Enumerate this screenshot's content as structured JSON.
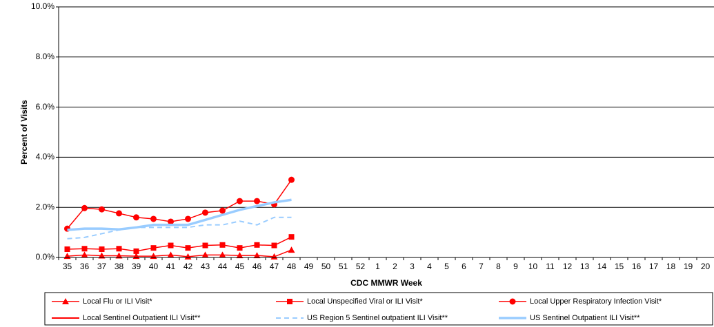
{
  "chart_data": {
    "type": "line",
    "y_label": "Percent of Visits",
    "x_label": "CDC MMWR Week",
    "categories": [
      "35",
      "36",
      "37",
      "38",
      "39",
      "40",
      "41",
      "42",
      "43",
      "44",
      "45",
      "46",
      "47",
      "48",
      "49",
      "50",
      "51",
      "52",
      "1",
      "2",
      "3",
      "4",
      "5",
      "6",
      "7",
      "8",
      "9",
      "10",
      "11",
      "12",
      "13",
      "14",
      "15",
      "16",
      "17",
      "18",
      "19",
      "20"
    ],
    "ylim": [
      0,
      10
    ],
    "yticks": [
      {
        "value": 0,
        "label": "0.0%"
      },
      {
        "value": 2,
        "label": "2.0%"
      },
      {
        "value": 4,
        "label": "4.0%"
      },
      {
        "value": 6,
        "label": "6.0%"
      },
      {
        "value": 8,
        "label": "8.0%"
      },
      {
        "value": 10,
        "label": "10.0%"
      }
    ],
    "grid": true,
    "legend": "bottom",
    "series": [
      {
        "name": "Local Flu or ILI Visit*",
        "color": "#ff0000",
        "marker": "triangle",
        "dash": false,
        "width": 1.5,
        "values": [
          0.05,
          0.1,
          0.07,
          0.07,
          0.05,
          0.05,
          0.1,
          0.03,
          0.1,
          0.1,
          0.08,
          0.08,
          0.03,
          0.3,
          null,
          null,
          null,
          null,
          null,
          null,
          null,
          null,
          null,
          null,
          null,
          null,
          null,
          null,
          null,
          null,
          null,
          null,
          null,
          null,
          null,
          null,
          null,
          null
        ]
      },
      {
        "name": "Local Unspecified Viral or ILI Visit*",
        "color": "#ff0000",
        "marker": "square",
        "dash": false,
        "width": 1.5,
        "values": [
          0.33,
          0.35,
          0.33,
          0.35,
          0.25,
          0.38,
          0.48,
          0.38,
          0.48,
          0.5,
          0.38,
          0.5,
          0.48,
          0.82,
          null,
          null,
          null,
          null,
          null,
          null,
          null,
          null,
          null,
          null,
          null,
          null,
          null,
          null,
          null,
          null,
          null,
          null,
          null,
          null,
          null,
          null,
          null,
          null
        ]
      },
      {
        "name": "Local Upper Respiratory Infection Visit*",
        "color": "#ff0000",
        "marker": "circle",
        "dash": false,
        "width": 1.5,
        "values": [
          1.15,
          1.97,
          1.92,
          1.76,
          1.6,
          1.54,
          1.43,
          1.54,
          1.79,
          1.87,
          2.25,
          2.25,
          2.12,
          3.1,
          null,
          null,
          null,
          null,
          null,
          null,
          null,
          null,
          null,
          null,
          null,
          null,
          null,
          null,
          null,
          null,
          null,
          null,
          null,
          null,
          null,
          null,
          null,
          null
        ]
      },
      {
        "name": "Local Sentinel Outpatient ILI Visit**",
        "color": "#ff0000",
        "marker": "none",
        "dash": false,
        "width": 2,
        "values": [
          null,
          null,
          null,
          null,
          null,
          null,
          null,
          null,
          null,
          null,
          null,
          null,
          null,
          null,
          null,
          null,
          null,
          null,
          null,
          null,
          null,
          null,
          null,
          null,
          null,
          null,
          null,
          null,
          null,
          null,
          null,
          null,
          null,
          null,
          null,
          null,
          null,
          null
        ]
      },
      {
        "name": "US Region 5 Sentinel outpatient ILI Visit**",
        "color": "#99ccff",
        "marker": "none",
        "dash": true,
        "width": 2,
        "values": [
          0.75,
          0.8,
          0.95,
          1.1,
          1.2,
          1.2,
          1.2,
          1.2,
          1.3,
          1.3,
          1.45,
          1.3,
          1.6,
          1.6,
          null,
          null,
          null,
          null,
          null,
          null,
          null,
          null,
          null,
          null,
          null,
          null,
          null,
          null,
          null,
          null,
          null,
          null,
          null,
          null,
          null,
          null,
          null,
          null
        ]
      },
      {
        "name": "US Sentinel Outpatient ILI Visit**",
        "color": "#99ccff",
        "marker": "none",
        "dash": false,
        "width": 3.5,
        "values": [
          1.1,
          1.15,
          1.15,
          1.12,
          1.2,
          1.3,
          1.3,
          1.3,
          1.5,
          1.7,
          1.9,
          2.05,
          2.2,
          2.3,
          null,
          null,
          null,
          null,
          null,
          null,
          null,
          null,
          null,
          null,
          null,
          null,
          null,
          null,
          null,
          null,
          null,
          null,
          null,
          null,
          null,
          null,
          null,
          null
        ]
      }
    ]
  }
}
